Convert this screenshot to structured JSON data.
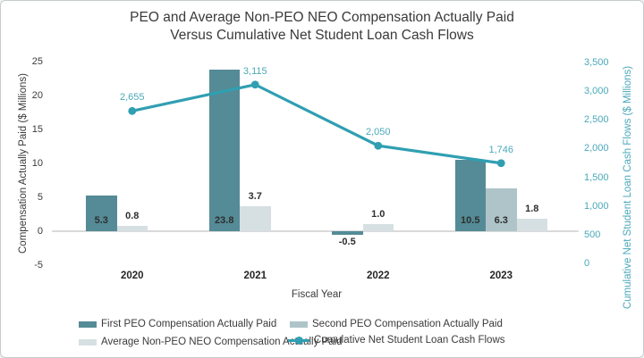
{
  "title": {
    "line1": "PEO and Average Non-PEO NEO Compensation Actually Paid",
    "line2": "Versus Cumulative Net Student Loan Cash Flows"
  },
  "chart_data": {
    "type": "combo-bar-line",
    "categories": [
      "2020",
      "2021",
      "2022",
      "2023"
    ],
    "series": [
      {
        "name": "First PEO Compensation Actually Paid",
        "type": "bar",
        "axis": "left",
        "color": "#548b96",
        "values": [
          5.3,
          23.8,
          -0.5,
          10.5
        ],
        "value_labels": [
          "5.3",
          "23.8",
          "-0.5",
          "10.5"
        ]
      },
      {
        "name": "Second PEO Compensation Actually Paid",
        "type": "bar",
        "axis": "left",
        "color": "#aec4c9",
        "values": [
          null,
          null,
          null,
          6.3
        ],
        "value_labels": [
          null,
          null,
          null,
          "6.3"
        ]
      },
      {
        "name": "Average Non-PEO NEO Compensation Actually Paid",
        "type": "bar",
        "axis": "left",
        "color": "#d6e0e3",
        "values": [
          0.8,
          3.7,
          1.0,
          1.8
        ],
        "value_labels": [
          "0.8",
          "3.7",
          "1.0",
          "1.8"
        ]
      },
      {
        "name": "Cumulative Net Student Loan Cash Flows",
        "type": "line",
        "axis": "right",
        "color": "#309fb2",
        "values": [
          2655,
          3115,
          2050,
          1746
        ],
        "value_labels": [
          "2,655",
          "3,115",
          "2,050",
          "1,746"
        ]
      }
    ],
    "xlabel": "Fiscal Year",
    "ylabel_left": "Compensation Actually Paid ($ Millions)",
    "ylabel_right": "Cumulative Net Student Loan Cash Flows ($ Millions)",
    "left_axis": {
      "range": [
        -5,
        25
      ],
      "ticks": [
        "25",
        "20",
        "15",
        "10",
        "5",
        "0",
        "-5"
      ]
    },
    "right_axis": {
      "range": [
        0,
        3500
      ],
      "ticks": [
        "3,500",
        "3,000",
        "2,500",
        "2,000",
        "1,500",
        "1,000",
        "500",
        "0"
      ]
    },
    "grid": "zero-line-only",
    "legend_position": "bottom"
  },
  "colors": {
    "accent_teal": "#309fb2",
    "teal_text": "#4aa8ba",
    "dark_text": "#3a3a3a",
    "grid_line": "#dadada",
    "border": "#c6ccce"
  }
}
